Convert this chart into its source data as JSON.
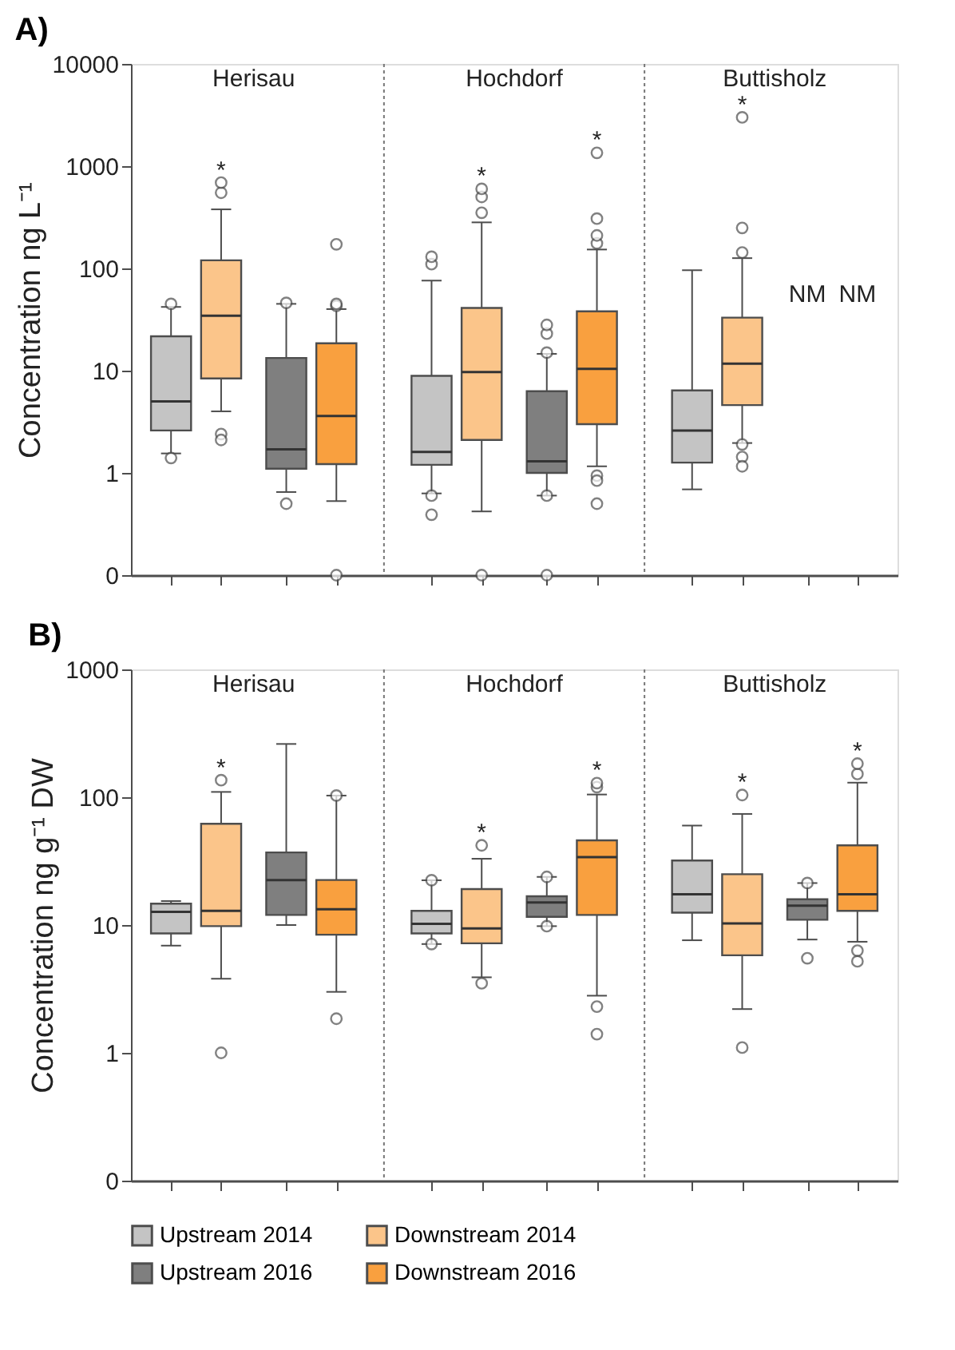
{
  "chart_data": [
    {
      "type": "box",
      "title": "A)",
      "ylabel": "Concentration ng L⁻¹",
      "categories": [
        "Herisau",
        "Hochdorf",
        "Buttisholz"
      ],
      "log": true,
      "grid": false,
      "legend": "bottom",
      "tick_labels": "y",
      "ylim": [
        0.1,
        10000
      ],
      "yticks": [
        {
          "value": 0.1,
          "label": "0"
        },
        1,
        10,
        100,
        1000,
        10000
      ],
      "series": [
        {
          "name": "Upstream 2014",
          "color": "#c4c4c4",
          "boxes": [
            {
              "low": 1.55,
              "q1": 2.6,
              "median": 5.0,
              "q3": 21.7,
              "high": 42,
              "outliers": [
                45,
                1.4
              ]
            },
            {
              "low": 0.63,
              "q1": 1.2,
              "median": 1.6,
              "q3": 8.9,
              "high": 76,
              "outliers": [
                110,
                130,
                0.6,
                0.39
              ]
            },
            {
              "low": 0.69,
              "q1": 1.26,
              "median": 2.6,
              "q3": 6.4,
              "high": 96
            }
          ]
        },
        {
          "name": "Downstream 2014",
          "color": "#fbc58a",
          "boxes": [
            {
              "low": 4.0,
              "q1": 8.4,
              "median": 34.5,
              "q3": 120,
              "high": 378,
              "outliers": [
                550,
                690,
                2.4,
                2.1
              ]
            },
            {
              "low": 0.42,
              "q1": 2.1,
              "median": 9.7,
              "q3": 41,
              "high": 282,
              "outliers": [
                350,
                500,
                600,
                0.1
              ]
            },
            {
              "low": 1.96,
              "q1": 4.6,
              "median": 11.7,
              "q3": 33,
              "high": 126,
              "outliers": [
                143,
                249,
                3000,
                1.9,
                1.43,
                1.16
              ]
            }
          ]
        },
        {
          "name": "Upstream 2016",
          "color": "#7f7f7f",
          "boxes": [
            {
              "low": 0.65,
              "q1": 1.1,
              "median": 1.7,
              "q3": 13.3,
              "high": 45,
              "outliers": [
                46,
                0.5
              ]
            },
            {
              "low": 0.6,
              "q1": 1.0,
              "median": 1.3,
              "q3": 6.3,
              "high": 14.6,
              "outliers": [
                15,
                23,
                28,
                0.6,
                0.1
              ]
            },
            null
          ]
        },
        {
          "name": "Downstream 2016",
          "color": "#f9a03f",
          "boxes": [
            {
              "low": 0.53,
              "q1": 1.22,
              "median": 3.6,
              "q3": 18.5,
              "high": 40,
              "outliers": [
                43,
                45,
                172,
                0.1
              ]
            },
            {
              "low": 1.16,
              "q1": 3.0,
              "median": 10.4,
              "q3": 38,
              "high": 153,
              "outliers": [
                176,
                210,
                307,
                1350,
                0.94,
                0.84,
                0.5
              ]
            },
            null
          ]
        }
      ],
      "annotations": [
        "*",
        "*",
        "*",
        "*",
        "NM",
        "NM"
      ]
    },
    {
      "type": "box",
      "title": "B)",
      "ylabel": "Concentration ng g⁻¹ DW",
      "categories": [
        "Herisau",
        "Hochdorf",
        "Buttisholz"
      ],
      "log": true,
      "grid": false,
      "legend": "bottom",
      "tick_labels": "y",
      "ylim": [
        0.1,
        1000
      ],
      "yticks": [
        {
          "value": 0.1,
          "label": "0"
        },
        1,
        10,
        100,
        1000
      ],
      "series": [
        {
          "name": "Upstream 2014",
          "color": "#c4c4c4",
          "boxes": [
            {
              "low": 6.9,
              "q1": 8.6,
              "median": 12.7,
              "q3": 14.7,
              "high": 15.4
            },
            {
              "low": 7.1,
              "q1": 8.6,
              "median": 10.2,
              "q3": 12.9,
              "high": 22.4,
              "outliers": [
                22.4,
                7.1
              ]
            },
            {
              "low": 7.6,
              "q1": 12.5,
              "median": 17.4,
              "q3": 32,
              "high": 60
            }
          ]
        },
        {
          "name": "Downstream 2014",
          "color": "#fbc58a",
          "boxes": [
            {
              "low": 3.8,
              "q1": 9.8,
              "median": 12.9,
              "q3": 62,
              "high": 110,
              "outliers": [
                136,
                1.0
              ]
            },
            {
              "low": 3.9,
              "q1": 7.2,
              "median": 9.4,
              "q3": 19.1,
              "high": 33,
              "outliers": [
                42,
                3.5
              ]
            },
            {
              "low": 2.2,
              "q1": 5.8,
              "median": 10.3,
              "q3": 25,
              "high": 74,
              "outliers": [
                104,
                1.1
              ]
            }
          ]
        },
        {
          "name": "Upstream 2016",
          "color": "#7f7f7f",
          "boxes": [
            {
              "low": 10,
              "q1": 12,
              "median": 22.5,
              "q3": 37,
              "high": 261
            },
            {
              "low": 9.8,
              "q1": 11.6,
              "median": 15,
              "q3": 16.8,
              "high": 23.8,
              "outliers": [
                23.8,
                9.8
              ]
            },
            {
              "low": 7.7,
              "q1": 11,
              "median": 14.2,
              "q3": 15.9,
              "high": 21.3,
              "outliers": [
                21.3,
                5.5
              ]
            }
          ]
        },
        {
          "name": "Downstream 2016",
          "color": "#f9a03f",
          "boxes": [
            {
              "low": 3.0,
              "q1": 8.4,
              "median": 13.3,
              "q3": 22.5,
              "high": 103,
              "outliers": [
                103,
                1.85
              ]
            },
            {
              "low": 2.8,
              "q1": 12,
              "median": 34,
              "q3": 46,
              "high": 105,
              "outliers": [
                120,
                129,
                2.3,
                1.4
              ]
            },
            {
              "low": 7.4,
              "q1": 12.9,
              "median": 17.4,
              "q3": 42,
              "high": 130,
              "outliers": [
                152,
                183,
                6.3,
                5.2
              ]
            }
          ]
        }
      ],
      "annotations": [
        "*",
        "*",
        "*",
        "*",
        "*"
      ]
    }
  ]
}
